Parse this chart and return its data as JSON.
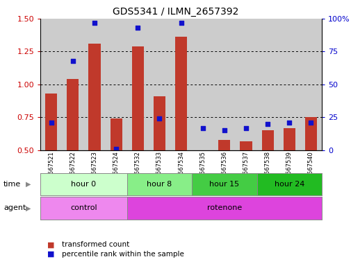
{
  "title": "GDS5341 / ILMN_2657392",
  "samples": [
    "GSM567521",
    "GSM567522",
    "GSM567523",
    "GSM567524",
    "GSM567532",
    "GSM567533",
    "GSM567534",
    "GSM567535",
    "GSM567536",
    "GSM567537",
    "GSM567538",
    "GSM567539",
    "GSM567540"
  ],
  "transformed_count": [
    0.93,
    1.04,
    1.31,
    0.74,
    1.29,
    0.91,
    1.36,
    0.5,
    0.58,
    0.57,
    0.65,
    0.67,
    0.75
  ],
  "percentile_rank": [
    21,
    68,
    97,
    1,
    93,
    24,
    97,
    17,
    15,
    17,
    20,
    21,
    21
  ],
  "ylim_left": [
    0.5,
    1.5
  ],
  "ylim_right": [
    0,
    100
  ],
  "yticks_left": [
    0.5,
    0.75,
    1.0,
    1.25,
    1.5
  ],
  "yticks_right": [
    0,
    25,
    50,
    75,
    100
  ],
  "ytick_labels_right": [
    "0",
    "25",
    "50",
    "75",
    "100%"
  ],
  "bar_color": "#C0392B",
  "dot_color": "#1111CC",
  "time_groups": [
    {
      "label": "hour 0",
      "start": 0,
      "end": 4,
      "color": "#CCFFCC"
    },
    {
      "label": "hour 8",
      "start": 4,
      "end": 7,
      "color": "#88EE88"
    },
    {
      "label": "hour 15",
      "start": 7,
      "end": 10,
      "color": "#44CC44"
    },
    {
      "label": "hour 24",
      "start": 10,
      "end": 13,
      "color": "#22BB22"
    }
  ],
  "agent_groups": [
    {
      "label": "control",
      "start": 0,
      "end": 4,
      "color": "#EE88EE"
    },
    {
      "label": "rotenone",
      "start": 4,
      "end": 13,
      "color": "#DD44DD"
    }
  ],
  "time_label": "time",
  "agent_label": "agent",
  "legend_red": "transformed count",
  "legend_blue": "percentile rank within the sample",
  "bg_color": "#FFFFFF",
  "sample_bg": "#CCCCCC",
  "bar_width": 0.55
}
